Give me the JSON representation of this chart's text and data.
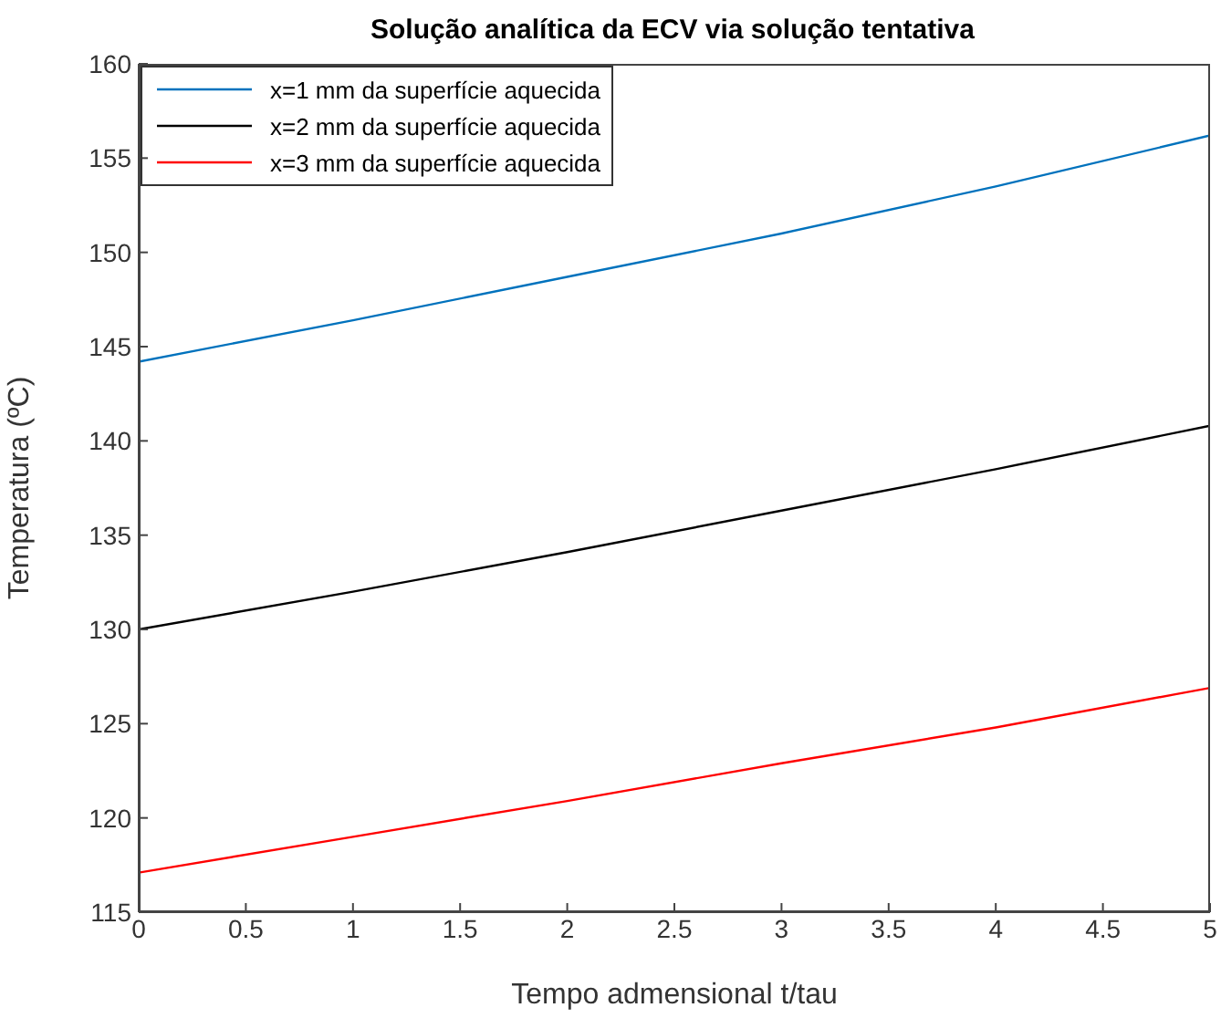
{
  "chart_data": {
    "type": "line",
    "title": "Solução analítica da ECV via solução tentativa",
    "xlabel": "Tempo admensional t/tau",
    "ylabel": "Temperatura (ºC)",
    "x": [
      0,
      1,
      2,
      3,
      4,
      5
    ],
    "series": [
      {
        "name": "x=1 mm da superfície aquecida",
        "color": "#0072bd",
        "values": [
          144.2,
          146.4,
          148.7,
          151.0,
          153.5,
          156.2
        ]
      },
      {
        "name": "x=2 mm da superfície aquecida",
        "color": "#000000",
        "values": [
          130.0,
          132.0,
          134.1,
          136.3,
          138.5,
          140.8
        ]
      },
      {
        "name": "x=3 mm da superfície aquecida",
        "color": "#ff0000",
        "values": [
          117.1,
          119.0,
          120.9,
          122.9,
          124.8,
          126.9
        ]
      }
    ],
    "xlim": [
      0,
      5
    ],
    "xticks": [
      0,
      0.5,
      1,
      1.5,
      2,
      2.5,
      3,
      3.5,
      4,
      4.5,
      5
    ],
    "ylim": [
      115,
      160
    ],
    "yticks": [
      115,
      120,
      125,
      130,
      135,
      140,
      145,
      150,
      155,
      160
    ],
    "grid": false,
    "legend": "top left",
    "marker": "none",
    "line_style": "solid"
  }
}
